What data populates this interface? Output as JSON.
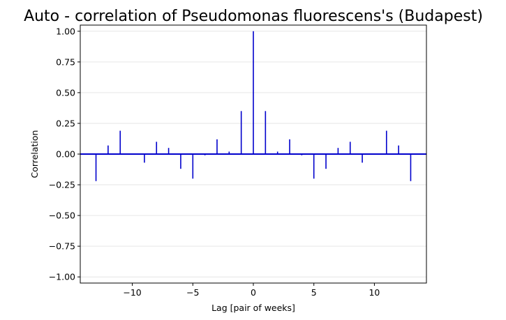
{
  "chart_data": {
    "type": "bar",
    "title": "Auto - correlation of Pseudomonas fluorescens's (Budapest)",
    "xlabel": "Lag [pair of weeks]",
    "ylabel": "Correlation",
    "xlim": [
      -14.3,
      14.3
    ],
    "ylim": [
      -1.05,
      1.05
    ],
    "x_ticks": [
      -10,
      -5,
      0,
      5,
      10
    ],
    "x_tick_labels": [
      "−10",
      "−5",
      "0",
      "5",
      "10"
    ],
    "y_ticks": [
      -1.0,
      -0.75,
      -0.5,
      -0.25,
      0.0,
      0.25,
      0.5,
      0.75,
      1.0
    ],
    "y_tick_labels": [
      "−1.00",
      "−0.75",
      "−0.50",
      "−0.25",
      "0.00",
      "0.25",
      "0.50",
      "0.75",
      "1.00"
    ],
    "grid": "horizontal",
    "series": [
      {
        "color": "#0000cc",
        "x": [
          -13,
          -12,
          -11,
          -10,
          -9,
          -8,
          -7,
          -6,
          -5,
          -4,
          -3,
          -2,
          -1,
          0,
          1,
          2,
          3,
          4,
          5,
          6,
          7,
          8,
          9,
          10,
          11,
          12,
          13
        ],
        "values": [
          -0.22,
          0.07,
          0.19,
          0.0,
          -0.07,
          0.1,
          0.05,
          -0.12,
          -0.2,
          -0.01,
          0.12,
          0.02,
          0.35,
          1.0,
          0.35,
          0.02,
          0.12,
          -0.01,
          -0.2,
          -0.12,
          0.05,
          0.1,
          -0.07,
          0.0,
          0.19,
          0.07,
          -0.22
        ]
      }
    ]
  }
}
